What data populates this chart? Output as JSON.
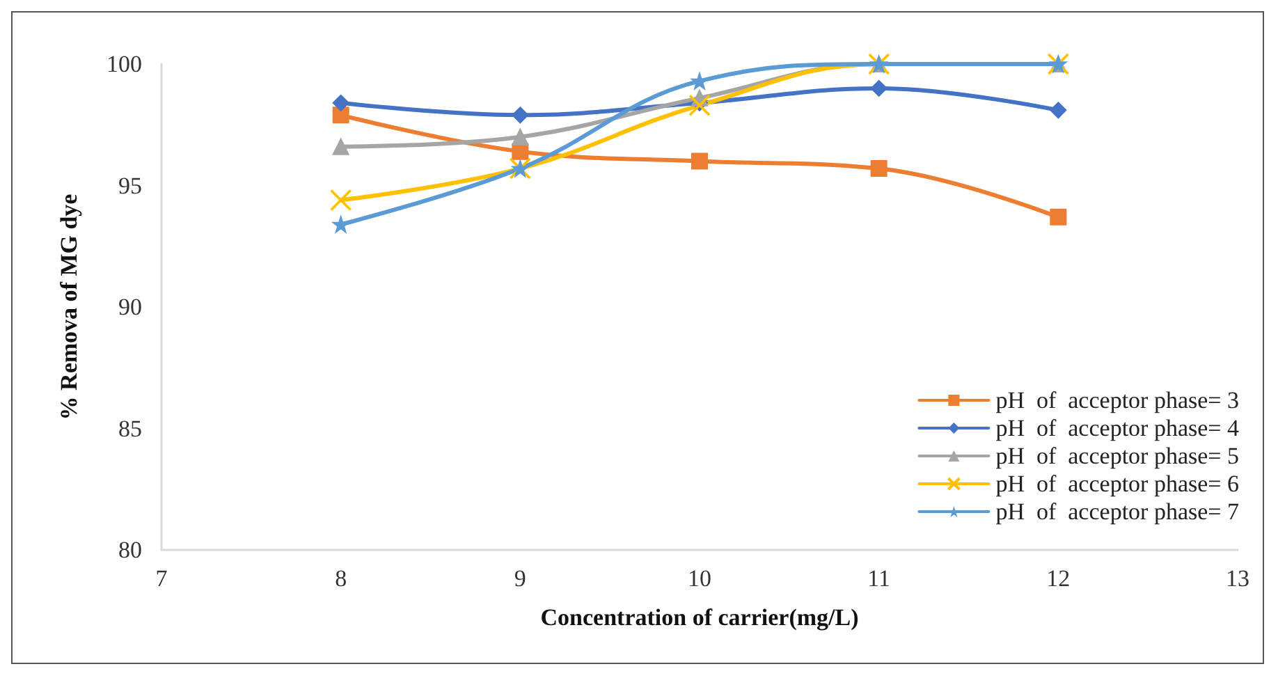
{
  "chart_data": {
    "type": "line",
    "xlabel": "Concentration of carrier(mg/L)",
    "ylabel": "% Remova of MG dye",
    "x": [
      8,
      9,
      10,
      11,
      12
    ],
    "xlim": [
      7,
      13
    ],
    "xticks": [
      7,
      8,
      9,
      10,
      11,
      12,
      13
    ],
    "ylim": [
      80,
      100
    ],
    "yticks": [
      80,
      85,
      90,
      95,
      100
    ],
    "grid": false,
    "legend": "bottom right",
    "series": [
      {
        "name": "pH  of  acceptor phase= 3",
        "color": "#ed7d31",
        "marker": "square",
        "values": [
          97.9,
          96.4,
          96.0,
          95.7,
          93.7
        ]
      },
      {
        "name": "pH  of  acceptor phase= 4",
        "color": "#4472c4",
        "marker": "diamond",
        "values": [
          98.4,
          97.9,
          98.4,
          99.0,
          98.1
        ]
      },
      {
        "name": "pH  of  acceptor phase= 5",
        "color": "#a5a5a5",
        "marker": "triangle",
        "values": [
          96.6,
          97.0,
          98.6,
          100,
          100
        ]
      },
      {
        "name": "pH  of  acceptor phase= 6",
        "color": "#ffc000",
        "marker": "cross",
        "values": [
          94.4,
          95.7,
          98.3,
          100,
          100
        ]
      },
      {
        "name": "pH  of  acceptor phase= 7",
        "color": "#5b9bd5",
        "marker": "star",
        "values": [
          93.4,
          95.7,
          99.3,
          100,
          100
        ]
      }
    ]
  }
}
